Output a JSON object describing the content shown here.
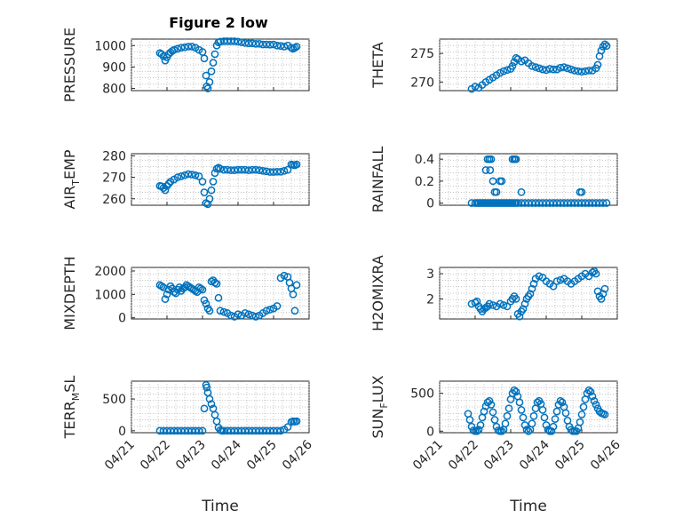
{
  "figure": {
    "title": "Figure 2 low",
    "marker_color": "#0072BD"
  },
  "chart_data": [
    {
      "id": "pressure",
      "type": "scatter",
      "ylabel": "PRESSURE",
      "yticks": [
        "800",
        "900",
        "1000"
      ],
      "ylim": [
        790,
        1030
      ],
      "xlim": [
        "04/21",
        "04/26"
      ],
      "series": [
        {
          "x": [
            21.8,
            21.85,
            21.9,
            21.95,
            22.0,
            22.05,
            22.1,
            22.15,
            22.2,
            22.3,
            22.4,
            22.5,
            22.6,
            22.7,
            22.8,
            22.9,
            23.0,
            23.05,
            23.1,
            23.12,
            23.15,
            23.2,
            23.25,
            23.3,
            23.35,
            23.4,
            23.45,
            23.5,
            23.6,
            23.7,
            23.8,
            23.9,
            24.0,
            24.1,
            24.2,
            24.3,
            24.4,
            24.5,
            24.6,
            24.7,
            24.8,
            24.9,
            25.0,
            25.1,
            25.2,
            25.3,
            25.4,
            25.5,
            25.55,
            25.6,
            25.65
          ],
          "y": [
            965,
            960,
            950,
            930,
            945,
            960,
            968,
            975,
            980,
            985,
            990,
            992,
            995,
            995,
            990,
            980,
            970,
            940,
            860,
            810,
            800,
            830,
            880,
            920,
            960,
            1000,
            1015,
            1018,
            1020,
            1020,
            1020,
            1020,
            1018,
            1015,
            1012,
            1010,
            1010,
            1008,
            1008,
            1005,
            1005,
            1004,
            1005,
            1000,
            998,
            995,
            1000,
            990,
            985,
            990,
            995
          ]
        }
      ]
    },
    {
      "id": "theta",
      "type": "scatter",
      "ylabel": "THETA",
      "yticks": [
        "270",
        "275"
      ],
      "ylim": [
        268.5,
        277.5
      ],
      "xlim": [
        "04/21",
        "04/26"
      ],
      "series": [
        {
          "x": [
            21.9,
            22.0,
            22.1,
            22.2,
            22.3,
            22.4,
            22.5,
            22.6,
            22.7,
            22.8,
            22.9,
            23.0,
            23.05,
            23.1,
            23.15,
            23.2,
            23.3,
            23.4,
            23.5,
            23.6,
            23.7,
            23.8,
            23.9,
            24.0,
            24.1,
            24.2,
            24.3,
            24.4,
            24.5,
            24.6,
            24.7,
            24.8,
            24.9,
            25.0,
            25.1,
            25.2,
            25.3,
            25.4,
            25.45,
            25.5,
            25.55,
            25.6,
            25.65,
            25.7
          ],
          "y": [
            268.8,
            269.2,
            269.0,
            269.5,
            270.0,
            270.4,
            270.8,
            271.2,
            271.6,
            271.9,
            272.1,
            272.3,
            272.8,
            273.5,
            274.2,
            274.0,
            273.6,
            273.8,
            273.3,
            272.8,
            272.6,
            272.4,
            272.2,
            272.1,
            272.3,
            272.2,
            272.2,
            272.5,
            272.6,
            272.4,
            272.2,
            272.0,
            271.9,
            271.8,
            271.9,
            272.0,
            272.0,
            272.4,
            273.0,
            274.5,
            275.5,
            276.2,
            276.6,
            276.3
          ]
        }
      ]
    },
    {
      "id": "air_temp",
      "type": "scatter",
      "ylabel_main": "AIR",
      "ylabel_sub": "T",
      "ylabel_tail": "EMP",
      "yticks": [
        "260",
        "270",
        "280"
      ],
      "ylim": [
        257,
        281
      ],
      "xlim": [
        "04/21",
        "04/26"
      ],
      "series": [
        {
          "x": [
            21.8,
            21.85,
            21.9,
            21.95,
            22.0,
            22.05,
            22.1,
            22.2,
            22.3,
            22.4,
            22.5,
            22.6,
            22.7,
            22.8,
            22.9,
            23.0,
            23.05,
            23.1,
            23.15,
            23.2,
            23.25,
            23.3,
            23.35,
            23.4,
            23.45,
            23.5,
            23.6,
            23.7,
            23.8,
            23.9,
            24.0,
            24.1,
            24.2,
            24.3,
            24.4,
            24.5,
            24.6,
            24.7,
            24.8,
            24.9,
            25.0,
            25.1,
            25.2,
            25.3,
            25.4,
            25.5,
            25.55,
            25.6,
            25.65
          ],
          "y": [
            266,
            265.8,
            265,
            264,
            266,
            267,
            268,
            269,
            270,
            270.5,
            271,
            271.5,
            271.3,
            271,
            270.5,
            268,
            263,
            258,
            257.5,
            260,
            264,
            268,
            272,
            274,
            274.5,
            274,
            273.5,
            273.5,
            273.3,
            273.3,
            273.5,
            273.5,
            273.5,
            273.3,
            273.5,
            273.5,
            273.3,
            273,
            272.8,
            272.5,
            272.5,
            272.6,
            272.6,
            273,
            273.5,
            276,
            275.8,
            275.6,
            276
          ]
        }
      ]
    },
    {
      "id": "rainfall",
      "type": "scatter",
      "ylabel": "RAINFALL",
      "yticks": [
        "0",
        "0.2",
        "0.4"
      ],
      "ylim": [
        -0.02,
        0.45
      ],
      "xlim": [
        "04/21",
        "04/26"
      ],
      "series": [
        {
          "x": [
            21.9,
            22.0,
            22.05,
            22.1,
            22.15,
            22.2,
            22.25,
            22.3,
            22.35,
            22.4,
            22.45,
            22.5,
            22.55,
            22.6,
            22.65,
            22.7,
            22.75,
            22.8,
            22.85,
            22.9,
            22.95,
            23.0,
            23.05,
            23.1,
            23.15,
            23.2,
            23.3,
            23.4,
            23.5,
            23.6,
            23.7,
            23.8,
            23.9,
            24.0,
            24.1,
            24.2,
            24.3,
            24.4,
            24.5,
            24.6,
            24.7,
            24.8,
            24.9,
            25.0,
            25.1,
            25.2,
            25.3,
            25.4,
            25.5,
            25.6,
            25.7,
            22.3,
            22.35,
            22.4,
            22.42,
            22.45,
            22.5,
            22.55,
            22.6,
            22.7,
            22.75,
            23.05,
            23.1,
            23.12,
            23.15,
            23.3,
            24.95,
            25.0
          ],
          "y": [
            0,
            0,
            0,
            0,
            0,
            0,
            0,
            0,
            0,
            0,
            0,
            0,
            0,
            0,
            0,
            0,
            0,
            0,
            0,
            0,
            0,
            0,
            0,
            0,
            0,
            0,
            0,
            0,
            0,
            0,
            0,
            0,
            0,
            0,
            0,
            0,
            0,
            0,
            0,
            0,
            0,
            0,
            0,
            0,
            0,
            0,
            0,
            0,
            0,
            0,
            0,
            0.3,
            0.4,
            0.4,
            0.3,
            0.4,
            0.2,
            0.1,
            0.1,
            0.2,
            0.2,
            0.4,
            0.4,
            0.4,
            0.4,
            0.1,
            0.1,
            0.1
          ]
        }
      ]
    },
    {
      "id": "mixdepth",
      "type": "scatter",
      "ylabel": "MIXDEPTH",
      "yticks": [
        "0",
        "1000",
        "2000"
      ],
      "ylim": [
        -50,
        2150
      ],
      "xlim": [
        "04/21",
        "04/26"
      ],
      "series": [
        {
          "x": [
            21.8,
            21.85,
            21.9,
            21.95,
            22.0,
            22.05,
            22.1,
            22.15,
            22.2,
            22.25,
            22.3,
            22.35,
            22.4,
            22.45,
            22.5,
            22.55,
            22.6,
            22.65,
            22.7,
            22.75,
            22.8,
            22.85,
            22.9,
            22.95,
            23.0,
            23.05,
            23.1,
            23.15,
            23.2,
            23.25,
            23.3,
            23.35,
            23.4,
            23.45,
            23.5,
            23.6,
            23.7,
            23.8,
            23.9,
            24.0,
            24.1,
            24.2,
            24.3,
            24.4,
            24.5,
            24.6,
            24.7,
            24.8,
            24.9,
            25.0,
            25.1,
            25.2,
            25.3,
            25.4,
            25.45,
            25.5,
            25.55,
            25.6,
            25.65
          ],
          "y": [
            1400,
            1350,
            1300,
            800,
            1000,
            1200,
            1350,
            1250,
            1100,
            1050,
            1200,
            1300,
            1150,
            1250,
            1300,
            1400,
            1350,
            1300,
            1250,
            1200,
            1150,
            1100,
            1300,
            1250,
            1200,
            750,
            600,
            400,
            300,
            1550,
            1600,
            1500,
            1450,
            850,
            300,
            250,
            200,
            100,
            50,
            150,
            100,
            200,
            150,
            100,
            50,
            100,
            200,
            300,
            350,
            400,
            500,
            1700,
            1800,
            1750,
            1500,
            1250,
            1000,
            300,
            1400
          ]
        }
      ]
    },
    {
      "id": "h2omixra",
      "type": "scatter",
      "ylabel": "H2OMIXRA",
      "yticks": [
        "2",
        "3"
      ],
      "ylim": [
        1.2,
        3.25
      ],
      "xlim": [
        "04/21",
        "04/26"
      ],
      "series": [
        {
          "x": [
            21.9,
            22.0,
            22.05,
            22.1,
            22.15,
            22.2,
            22.25,
            22.3,
            22.35,
            22.4,
            22.5,
            22.6,
            22.7,
            22.8,
            22.9,
            23.0,
            23.05,
            23.1,
            23.15,
            23.2,
            23.25,
            23.3,
            23.35,
            23.4,
            23.45,
            23.5,
            23.55,
            23.6,
            23.65,
            23.7,
            23.8,
            23.9,
            24.0,
            24.1,
            24.2,
            24.3,
            24.4,
            24.5,
            24.6,
            24.7,
            24.8,
            24.9,
            25.0,
            25.1,
            25.2,
            25.3,
            25.35,
            25.4,
            25.45,
            25.5,
            25.55,
            25.6,
            25.65
          ],
          "y": [
            1.8,
            1.85,
            1.9,
            1.7,
            1.6,
            1.5,
            1.6,
            1.65,
            1.7,
            1.8,
            1.75,
            1.7,
            1.8,
            1.75,
            1.7,
            1.9,
            2.0,
            2.1,
            2.0,
            1.4,
            1.3,
            1.5,
            1.6,
            1.8,
            2.0,
            2.1,
            2.2,
            2.4,
            2.6,
            2.8,
            2.9,
            2.85,
            2.7,
            2.6,
            2.5,
            2.7,
            2.75,
            2.8,
            2.7,
            2.6,
            2.7,
            2.8,
            2.9,
            3.0,
            2.9,
            3.05,
            3.1,
            3.0,
            2.3,
            2.1,
            2.0,
            2.2,
            2.4
          ]
        }
      ]
    },
    {
      "id": "terr_msl",
      "type": "scatter",
      "ylabel_main": "TERR",
      "ylabel_sub": "M",
      "ylabel_tail": "SL",
      "yticks": [
        "0",
        "500"
      ],
      "ylim": [
        -30,
        780
      ],
      "xlim": [
        "04/21",
        "04/26"
      ],
      "xticks": [
        "04/21",
        "04/22",
        "04/23",
        "04/24",
        "04/25",
        "04/26"
      ],
      "xlabel": "Time",
      "series": [
        {
          "x": [
            21.8,
            21.9,
            22.0,
            22.1,
            22.2,
            22.3,
            22.4,
            22.5,
            22.6,
            22.7,
            22.8,
            22.9,
            23.0,
            23.05,
            23.1,
            23.12,
            23.15,
            23.2,
            23.25,
            23.3,
            23.35,
            23.4,
            23.45,
            23.5,
            23.55,
            23.6,
            23.7,
            23.8,
            23.9,
            24.0,
            24.1,
            24.2,
            24.3,
            24.4,
            24.5,
            24.6,
            24.7,
            24.8,
            24.9,
            25.0,
            25.1,
            25.2,
            25.3,
            25.4,
            25.5,
            25.55,
            25.6,
            25.65
          ],
          "y": [
            0,
            0,
            0,
            0,
            0,
            0,
            0,
            0,
            0,
            0,
            0,
            0,
            0,
            350,
            720,
            680,
            600,
            500,
            420,
            350,
            250,
            150,
            50,
            10,
            0,
            0,
            0,
            0,
            0,
            0,
            0,
            0,
            0,
            0,
            0,
            0,
            0,
            0,
            0,
            0,
            0,
            0,
            20,
            60,
            140,
            150,
            145,
            150
          ]
        }
      ]
    },
    {
      "id": "sun_flux",
      "type": "scatter",
      "ylabel_main": "SUN",
      "ylabel_sub": "F",
      "ylabel_tail": "LUX",
      "yticks": [
        "0",
        "500"
      ],
      "ylim": [
        -20,
        660
      ],
      "xlim": [
        "04/21",
        "04/26"
      ],
      "xticks": [
        "04/21",
        "04/22",
        "04/23",
        "04/24",
        "04/25",
        "04/26"
      ],
      "xlabel": "Time",
      "series": [
        {
          "x": [
            21.8,
            21.85,
            21.9,
            21.95,
            22.0,
            22.05,
            22.1,
            22.15,
            22.2,
            22.25,
            22.3,
            22.35,
            22.4,
            22.45,
            22.5,
            22.55,
            22.6,
            22.65,
            22.7,
            22.75,
            22.8,
            22.85,
            22.9,
            22.95,
            23.0,
            23.05,
            23.1,
            23.15,
            23.2,
            23.25,
            23.3,
            23.35,
            23.4,
            23.45,
            23.5,
            23.55,
            23.6,
            23.65,
            23.7,
            23.75,
            23.8,
            23.85,
            23.9,
            23.95,
            24.0,
            24.05,
            24.1,
            24.15,
            24.2,
            24.25,
            24.3,
            24.35,
            24.4,
            24.45,
            24.5,
            24.55,
            24.6,
            24.65,
            24.7,
            24.75,
            24.8,
            24.85,
            24.9,
            24.95,
            25.0,
            25.05,
            25.1,
            25.15,
            25.2,
            25.25,
            25.3,
            25.35,
            25.4,
            25.45,
            25.5,
            25.55,
            25.6,
            25.65
          ],
          "y": [
            230,
            150,
            60,
            10,
            0,
            0,
            20,
            80,
            180,
            260,
            330,
            380,
            400,
            350,
            250,
            150,
            60,
            10,
            0,
            0,
            20,
            100,
            200,
            300,
            420,
            500,
            540,
            520,
            460,
            380,
            280,
            180,
            80,
            20,
            0,
            20,
            100,
            200,
            300,
            380,
            400,
            360,
            280,
            180,
            80,
            20,
            0,
            0,
            60,
            160,
            260,
            350,
            400,
            380,
            320,
            240,
            140,
            60,
            20,
            0,
            0,
            0,
            40,
            120,
            220,
            320,
            420,
            500,
            540,
            520,
            460,
            400,
            350,
            300,
            260,
            240,
            230,
            220
          ]
        }
      ]
    }
  ]
}
